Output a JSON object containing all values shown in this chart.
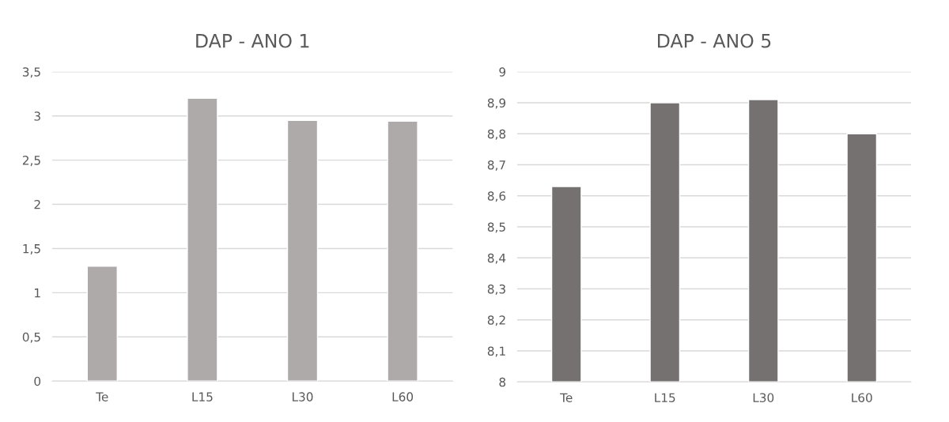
{
  "chart_data": [
    {
      "type": "bar",
      "title": "DAP - ANO 1",
      "categories": [
        "Te",
        "L15",
        "L30",
        "L60"
      ],
      "values": [
        1.3,
        3.2,
        2.95,
        2.94
      ],
      "color": "#aeaaaa",
      "ylim": [
        0,
        3.5
      ],
      "yticks": [
        0,
        {
          "value": 0.5,
          "label": "0,5"
        },
        1,
        {
          "value": 1.5,
          "label": "1,5"
        },
        2,
        {
          "value": 2.5,
          "label": "2,5"
        },
        3,
        {
          "value": 3.5,
          "label": "3,5"
        }
      ],
      "grid": "y"
    },
    {
      "type": "bar",
      "title": "DAP - ANO 5",
      "categories": [
        "Te",
        "L15",
        "L30",
        "L60"
      ],
      "values": [
        8.63,
        8.9,
        8.91,
        8.8
      ],
      "color": "#767171",
      "ylim": [
        8,
        9
      ],
      "yticks": [
        8,
        {
          "value": 8.1,
          "label": "8,1"
        },
        {
          "value": 8.2,
          "label": "8,2"
        },
        {
          "value": 8.3,
          "label": "8,3"
        },
        {
          "value": 8.4,
          "label": "8,4"
        },
        {
          "value": 8.5,
          "label": "8,5"
        },
        {
          "value": 8.6,
          "label": "8,6"
        },
        {
          "value": 8.7,
          "label": "8,7"
        },
        {
          "value": 8.8,
          "label": "8,8"
        },
        {
          "value": 8.9,
          "label": "8,9"
        },
        9
      ],
      "grid": "y"
    }
  ]
}
